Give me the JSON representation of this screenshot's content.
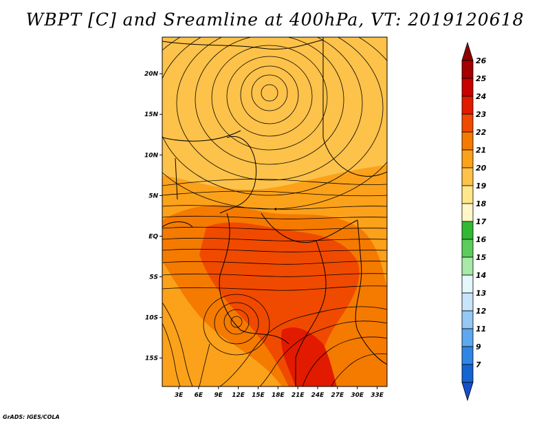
{
  "title": "WBPT [C] and Sreamline at 400hPa, VT: 2019120618",
  "footer": "GrADS: IGES/COLA",
  "map": {
    "lat_ticks": [
      "20N",
      "15N",
      "10N",
      "5N",
      "EQ",
      "5S",
      "10S",
      "15S"
    ],
    "lat_values": [
      20,
      15,
      10,
      5,
      0,
      -5,
      -10,
      -15
    ],
    "lon_ticks": [
      "3E",
      "6E",
      "9E",
      "12E",
      "15E",
      "18E",
      "21E",
      "24E",
      "27E",
      "30E",
      "33E"
    ],
    "lon_values": [
      3,
      6,
      9,
      12,
      15,
      18,
      21,
      24,
      27,
      30,
      33
    ],
    "lon_range": [
      0.5,
      34.5
    ],
    "lat_range": [
      -18.5,
      24.5
    ]
  },
  "colorbar": {
    "labels": [
      "26",
      "25",
      "24",
      "23",
      "22",
      "21",
      "20",
      "19",
      "18",
      "17",
      "16",
      "15",
      "14",
      "13",
      "12",
      "11",
      "9",
      "7"
    ],
    "colors": [
      "#a50000",
      "#c80000",
      "#e11a00",
      "#f04a00",
      "#f57a00",
      "#fca11a",
      "#fdc24a",
      "#ffe78a",
      "#fff7c8",
      "#33b833",
      "#5ccc5c",
      "#a8e8a8",
      "#e4f7fb",
      "#c8e4fa",
      "#96c8f5",
      "#5ea8ef",
      "#2f86e6",
      "#1464d2"
    ],
    "top_arrow_color": "#8c0000",
    "bottom_arrow_color": "#1450c8"
  },
  "colors": {
    "north_field": "#fdc24a",
    "mid_field": "#fca11a",
    "south_field": "#f57a00",
    "hot_field": "#f04a00",
    "hottest_field": "#e11a00"
  }
}
